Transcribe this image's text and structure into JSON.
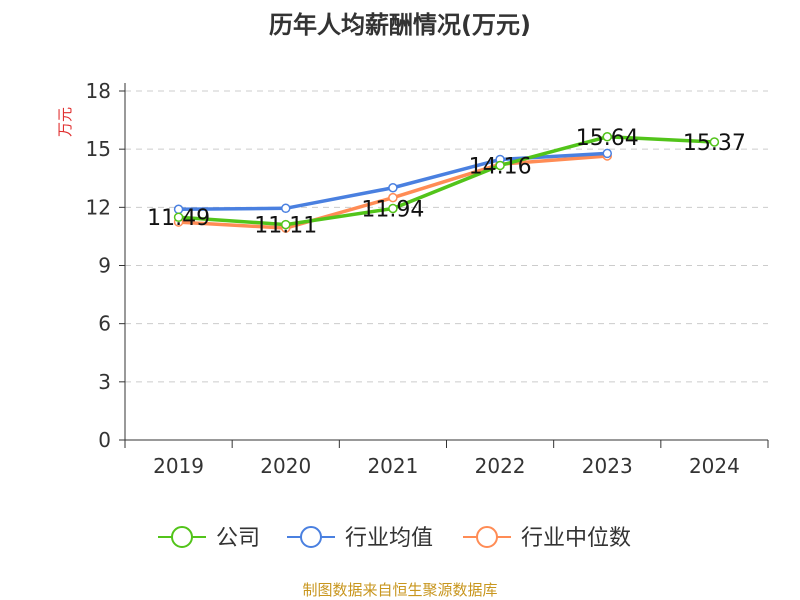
{
  "chart_data": {
    "type": "line",
    "title": "历年人均薪酬情况(万元)",
    "ylabel": "万元",
    "ylim": [
      0,
      18
    ],
    "yticks": [
      0,
      3,
      6,
      9,
      12,
      15,
      18
    ],
    "categories": [
      "2019",
      "2020",
      "2021",
      "2022",
      "2023",
      "2024"
    ],
    "grid": true,
    "legend_position": "bottom",
    "series": [
      {
        "name": "公司",
        "color": "#52c41a",
        "values": [
          11.49,
          11.11,
          11.94,
          14.16,
          15.64,
          15.37
        ],
        "labels": [
          "11.49",
          "11.11",
          "11.94",
          "14.16",
          "15.64",
          "15.37"
        ]
      },
      {
        "name": "行业均值",
        "color": "#4a80e0",
        "values": [
          11.9,
          11.95,
          13.01,
          14.47,
          14.78,
          null
        ]
      },
      {
        "name": "行业中位数",
        "color": "#ff8c55",
        "values": [
          11.24,
          10.93,
          12.5,
          14.22,
          14.65,
          null
        ]
      }
    ]
  },
  "footer": "制图数据来自恒生聚源数据库"
}
